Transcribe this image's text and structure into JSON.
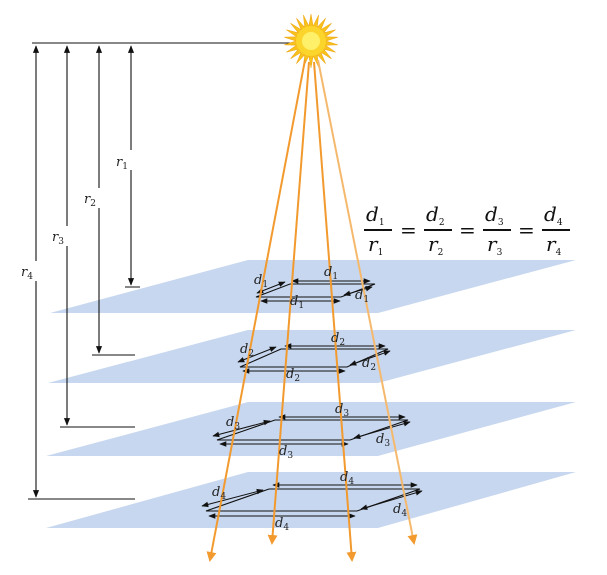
{
  "distance_labels": {
    "r1": "r",
    "r1_sub": "1",
    "r2": "r",
    "r2_sub": "2",
    "r3": "r",
    "r3_sub": "3",
    "r4": "r",
    "r4_sub": "4"
  },
  "planes": [
    {
      "id": 1,
      "d": "d",
      "sub": "1"
    },
    {
      "id": 2,
      "d": "d",
      "sub": "2"
    },
    {
      "id": 3,
      "d": "d",
      "sub": "3"
    },
    {
      "id": 4,
      "d": "d",
      "sub": "4"
    }
  ],
  "equation": {
    "terms": [
      {
        "num": "d",
        "num_sub": "1",
        "den": "r",
        "den_sub": "1"
      },
      {
        "num": "d",
        "num_sub": "2",
        "den": "r",
        "den_sub": "2"
      },
      {
        "num": "d",
        "num_sub": "3",
        "den": "r",
        "den_sub": "3"
      },
      {
        "num": "d",
        "num_sub": "4",
        "den": "r",
        "den_sub": "4"
      }
    ],
    "equals": "="
  },
  "colors": {
    "plane_fill": "#c7d7ef",
    "ray": "#f29a2e",
    "ray_light": "#f5b96e",
    "sun_outer": "#f7c21b",
    "sun_inner": "#fff06a",
    "line": "#111111"
  }
}
